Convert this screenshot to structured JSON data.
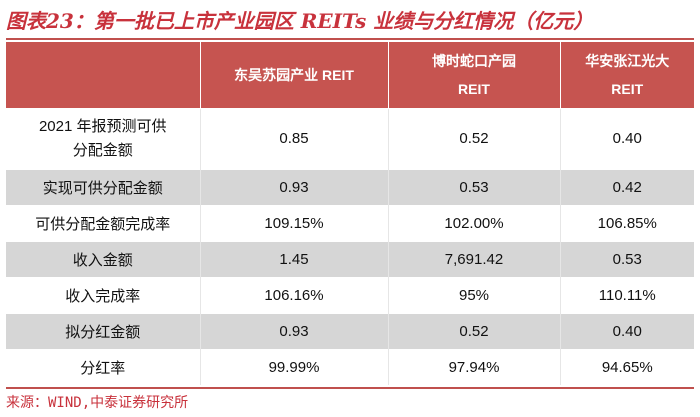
{
  "title": "图表23：第一批已上市产业园区 REITs 业绩与分红情况（亿元）",
  "table": {
    "headers": [
      {
        "line1": "",
        "line2": ""
      },
      {
        "line1": "东吴苏园产业 REIT",
        "line2": ""
      },
      {
        "line1": "博时蛇口产园",
        "line2": "REIT"
      },
      {
        "line1": "华安张江光大",
        "line2": "REIT"
      }
    ],
    "rows": [
      {
        "label_line1": "2021 年报预测可供",
        "label_line2": "分配金额",
        "values": [
          "0.85",
          "0.52",
          "0.40"
        ]
      },
      {
        "label_line1": "实现可供分配金额",
        "label_line2": "",
        "values": [
          "0.93",
          "0.53",
          "0.42"
        ]
      },
      {
        "label_line1": "可供分配金额完成率",
        "label_line2": "",
        "values": [
          "109.15%",
          "102.00%",
          "106.85%"
        ]
      },
      {
        "label_line1": "收入金额",
        "label_line2": "",
        "values": [
          "1.45",
          "7,691.42",
          "0.53"
        ]
      },
      {
        "label_line1": "收入完成率",
        "label_line2": "",
        "values": [
          "106.16%",
          "95%",
          "110.11%"
        ]
      },
      {
        "label_line1": "拟分红金额",
        "label_line2": "",
        "values": [
          "0.93",
          "0.52",
          "0.40"
        ]
      },
      {
        "label_line1": "分红率",
        "label_line2": "",
        "values": [
          "99.99%",
          "97.94%",
          "94.65%"
        ]
      }
    ]
  },
  "source": "来源：WIND,中泰证券研究所",
  "colors": {
    "accent": "#c8323c",
    "header_bg": "#c65450",
    "shade_bg": "#d6d6d6"
  }
}
